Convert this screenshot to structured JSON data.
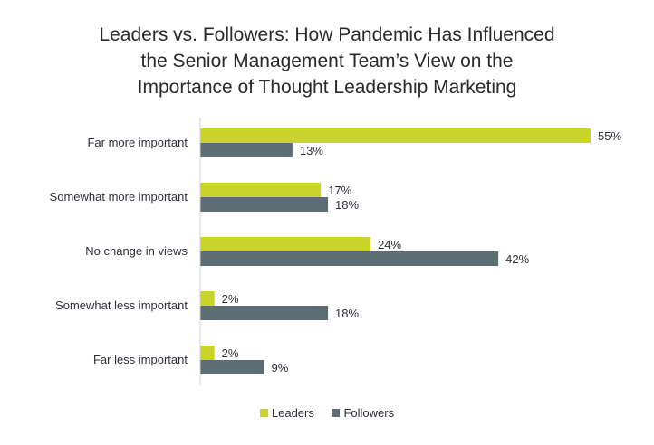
{
  "chart_data": {
    "type": "bar",
    "orientation": "horizontal",
    "title_lines": [
      "Leaders vs. Followers: How Pandemic Has Influenced",
      "the Senior Management Team’s View on the",
      "Importance of Thought Leadership Marketing"
    ],
    "categories": [
      "Far more important",
      "Somewhat more important",
      "No change in views",
      "Somewhat less important",
      "Far less important"
    ],
    "series": [
      {
        "name": "Leaders",
        "values": [
          55,
          17,
          24,
          2,
          2
        ],
        "labels": [
          "55%",
          "17%",
          "24%",
          "2%",
          "2%"
        ],
        "color": "#c9d42b"
      },
      {
        "name": "Followers",
        "values": [
          13,
          18,
          42,
          18,
          9
        ],
        "labels": [
          "13%",
          "18%",
          "42%",
          "18%",
          "9%"
        ],
        "color": "#5c6d74"
      }
    ],
    "unit": "%",
    "xlim": [
      0,
      55
    ],
    "grid": false,
    "legend_position": "bottom"
  }
}
